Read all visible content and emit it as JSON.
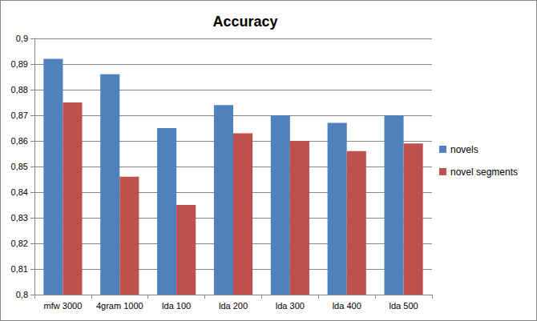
{
  "chart_data": {
    "type": "bar",
    "title": "Accuracy",
    "categories": [
      "mfw 3000",
      "4gram 1000",
      "lda 100",
      "lda 200",
      "lda 300",
      "lda 400",
      "lda 500"
    ],
    "series": [
      {
        "name": "novels",
        "color": "#4f81bd",
        "values": [
          0.892,
          0.886,
          0.865,
          0.874,
          0.87,
          0.867,
          0.87
        ]
      },
      {
        "name": "novel segments",
        "color": "#c0504d",
        "values": [
          0.875,
          0.846,
          0.835,
          0.863,
          0.86,
          0.856,
          0.859
        ]
      }
    ],
    "ylim": [
      0.8,
      0.9
    ],
    "yticks": [
      {
        "value": 0.8,
        "label": "0,8"
      },
      {
        "value": 0.81,
        "label": "0,81"
      },
      {
        "value": 0.82,
        "label": "0,82"
      },
      {
        "value": 0.83,
        "label": "0,83"
      },
      {
        "value": 0.84,
        "label": "0,84"
      },
      {
        "value": 0.85,
        "label": "0,85"
      },
      {
        "value": 0.86,
        "label": "0,86"
      },
      {
        "value": 0.87,
        "label": "0,87"
      },
      {
        "value": 0.88,
        "label": "0,88"
      },
      {
        "value": 0.89,
        "label": "0,89"
      },
      {
        "value": 0.9,
        "label": "0,9"
      }
    ],
    "grid": true,
    "legend": "right"
  }
}
